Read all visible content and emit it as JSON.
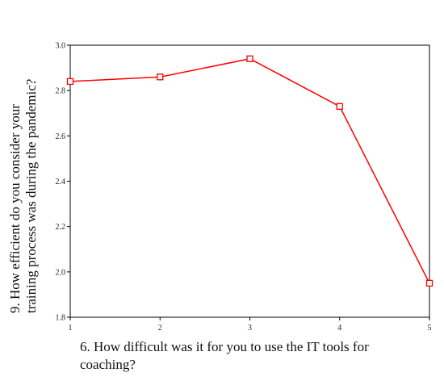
{
  "chart_data": {
    "type": "line",
    "title": "",
    "xlabel_lines": [
      "6. How difficult was it for you to use the IT tools for",
      "coaching?"
    ],
    "ylabel_lines": [
      "9. How efficient do you consider your",
      "training process was during the pandemic?"
    ],
    "x": [
      1,
      2,
      3,
      4,
      5
    ],
    "series": [
      {
        "values": [
          2.84,
          2.86,
          2.94,
          2.73,
          1.95
        ]
      }
    ],
    "xlim": [
      1,
      5
    ],
    "ylim": [
      1.8,
      3.0
    ],
    "xticks": [
      1,
      2,
      3,
      4,
      5
    ],
    "yticks": [
      1.8,
      2.0,
      2.2,
      2.4,
      2.6,
      2.8,
      3.0
    ],
    "ytick_labels": [
      "1.8",
      "2.0",
      "2.2",
      "2.4",
      "2.6",
      "2.8",
      "3.0"
    ],
    "grid": false,
    "marker": "square",
    "line_color": "#ff0000"
  }
}
